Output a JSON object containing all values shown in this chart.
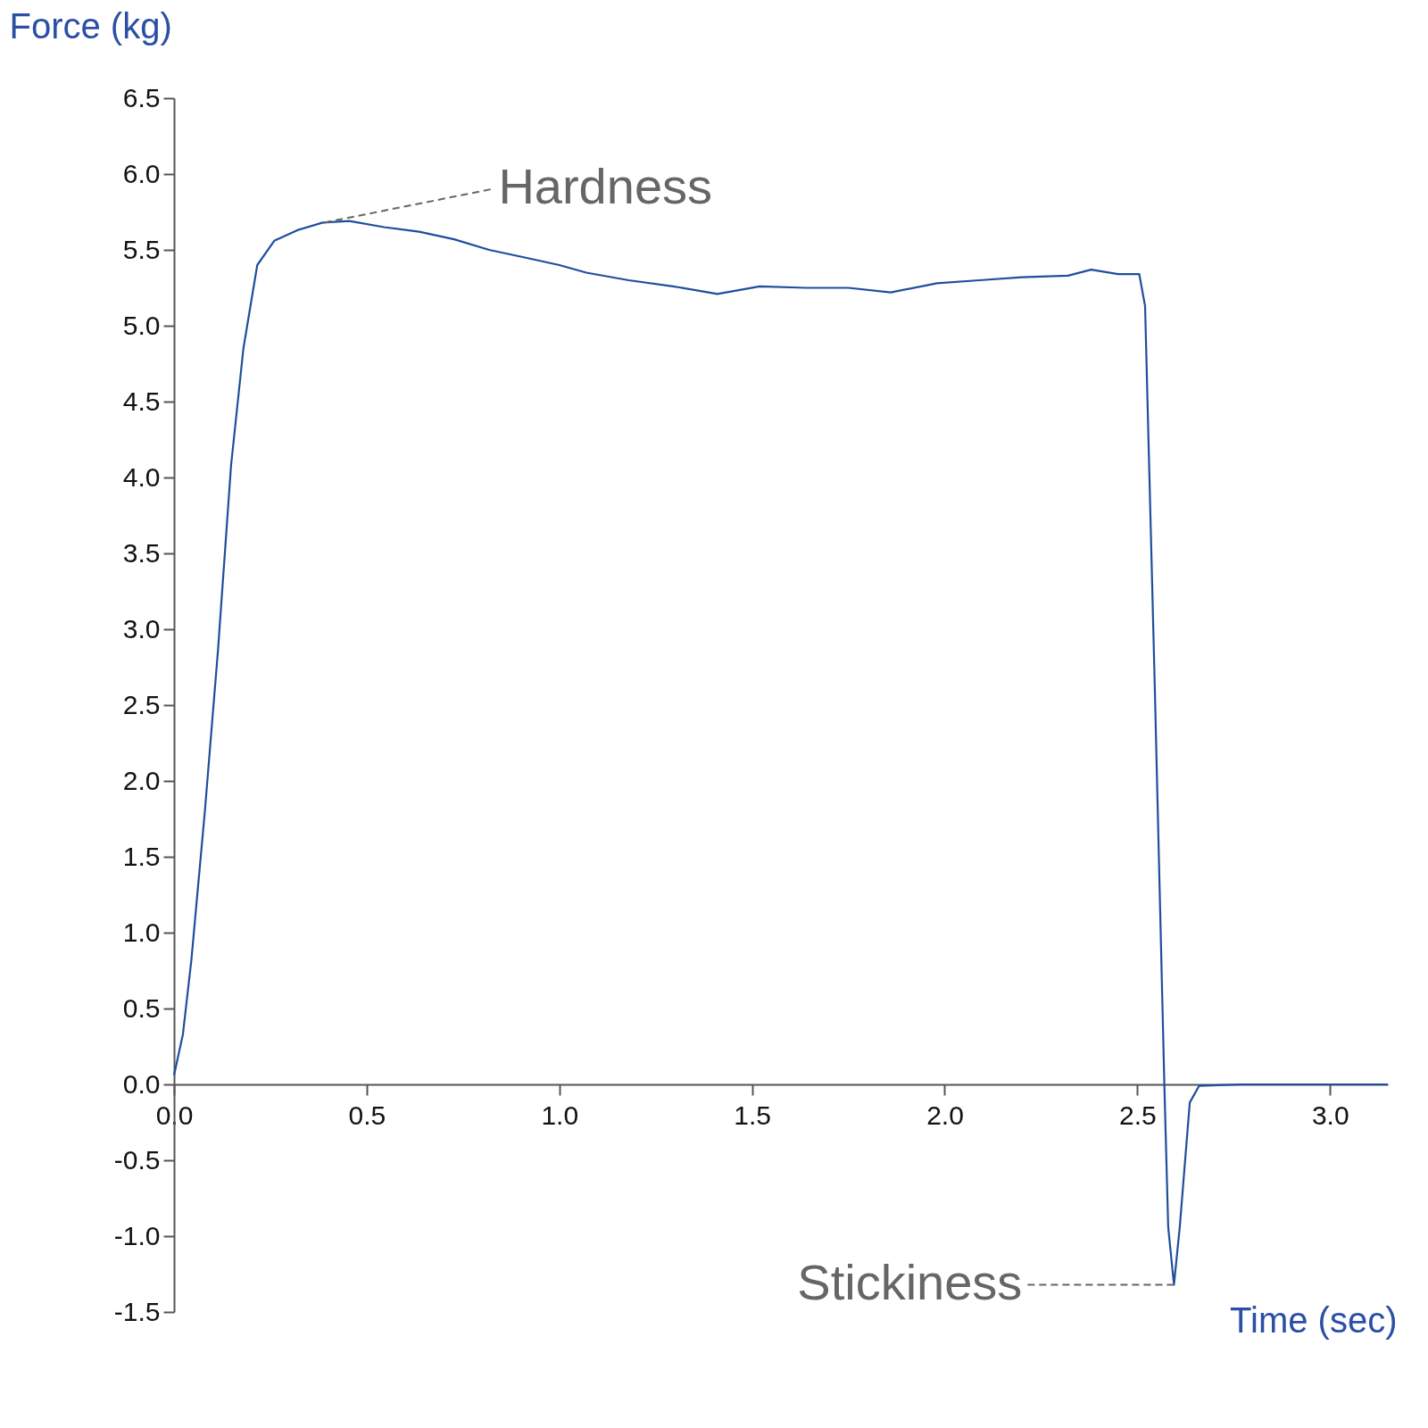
{
  "chart_data": {
    "type": "line",
    "xlabel": "Time (sec)",
    "ylabel": "Force (kg)",
    "x": [
      0,
      0.023,
      0.045,
      0.08,
      0.114,
      0.148,
      0.18,
      0.216,
      0.26,
      0.32,
      0.386,
      0.455,
      0.545,
      0.636,
      0.727,
      0.818,
      0.91,
      1.0,
      1.07,
      1.18,
      1.295,
      1.41,
      1.52,
      1.64,
      1.75,
      1.86,
      1.98,
      2.09,
      2.2,
      2.32,
      2.38,
      2.45,
      2.505,
      2.52,
      2.545,
      2.57,
      2.58,
      2.595,
      2.61,
      2.636,
      2.66,
      2.77,
      3.15
    ],
    "series": [
      {
        "color": "#1f4e9c",
        "values": [
          0.06,
          0.33,
          0.82,
          1.8,
          2.86,
          4.08,
          4.85,
          5.4,
          5.56,
          5.63,
          5.68,
          5.69,
          5.65,
          5.62,
          5.57,
          5.5,
          5.45,
          5.4,
          5.35,
          5.3,
          5.26,
          5.21,
          5.26,
          5.25,
          5.25,
          5.22,
          5.28,
          5.3,
          5.32,
          5.33,
          5.37,
          5.34,
          5.34,
          5.13,
          2.64,
          0,
          -0.94,
          -1.32,
          -0.94,
          -0.12,
          -0.01,
          0,
          0
        ]
      }
    ],
    "xlim": [
      0,
      3.15
    ],
    "ylim": [
      -1.5,
      6.5
    ],
    "xticks": [
      {
        "value": 0,
        "label": "0.0"
      },
      0.5,
      {
        "value": 1,
        "label": "1.0"
      },
      1.5,
      {
        "value": 2,
        "label": "2.0"
      },
      2.5,
      {
        "value": 3,
        "label": "3.0"
      }
    ],
    "yticks": [
      -1.5,
      {
        "value": -1,
        "label": "-1.0"
      },
      -0.5,
      {
        "value": 0,
        "label": "0.0"
      },
      0.5,
      {
        "value": 1,
        "label": "1.0"
      },
      1.5,
      {
        "value": 2,
        "label": "2.0"
      },
      2.5,
      {
        "value": 3,
        "label": "3.0"
      },
      3.5,
      {
        "value": 4,
        "label": "4.0"
      },
      4.5,
      {
        "value": 5,
        "label": "5.0"
      },
      5.5,
      {
        "value": 6,
        "label": "6.0"
      },
      6.5
    ],
    "annotations": [
      {
        "text": "Hardness",
        "x": 0.39,
        "y": 5.68
      },
      {
        "text": "Stickiness",
        "x": 2.595,
        "y": -1.32
      }
    ],
    "grid": false,
    "marker": "none",
    "line_style": "solid"
  }
}
